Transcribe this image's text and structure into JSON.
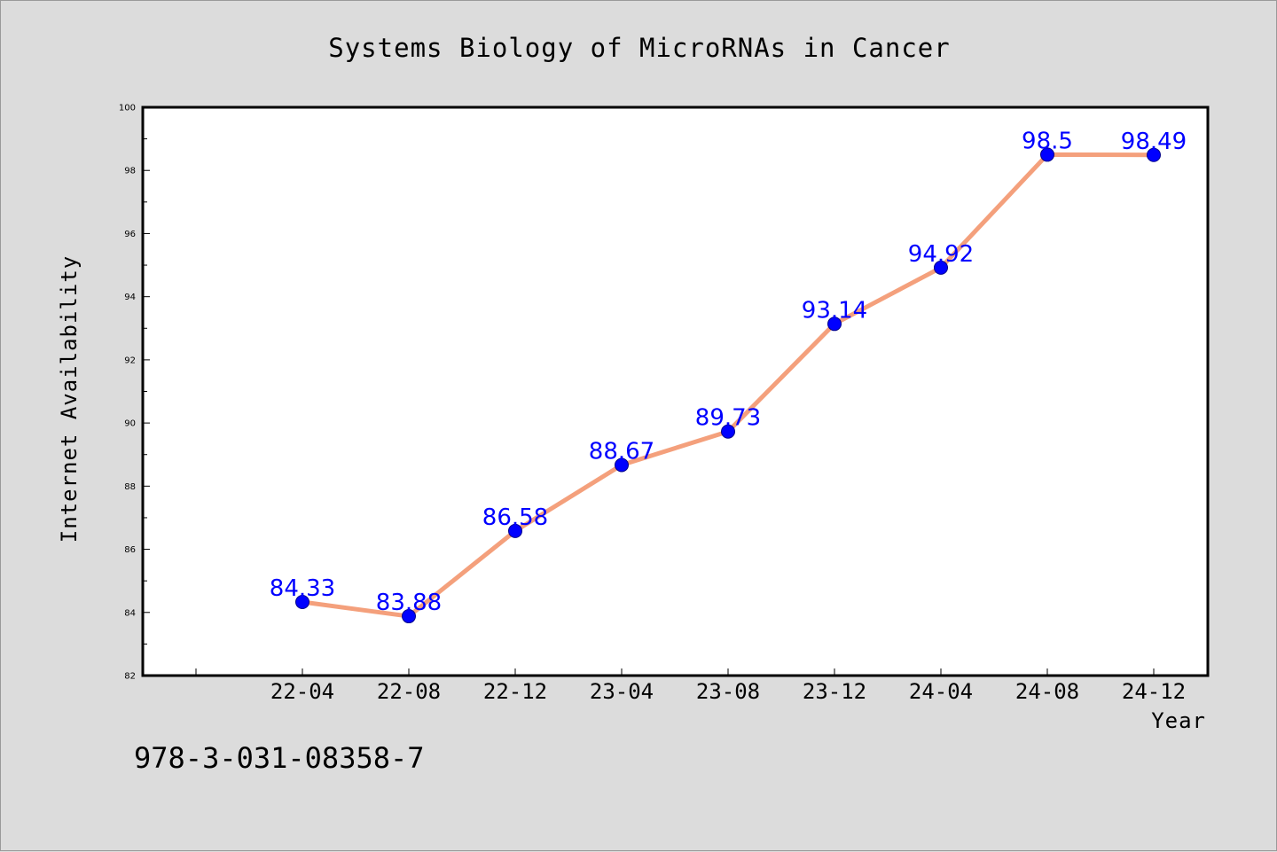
{
  "chart_data": {
    "type": "line",
    "title": "Systems Biology of MicroRNAs in Cancer",
    "xlabel": "Year",
    "ylabel": "Internet Availability",
    "categories": [
      "22-04",
      "22-08",
      "22-12",
      "23-04",
      "23-08",
      "23-12",
      "24-04",
      "24-08",
      "24-12"
    ],
    "values": [
      84.33,
      83.88,
      86.58,
      88.67,
      89.73,
      93.14,
      94.92,
      98.5,
      98.49
    ],
    "data_labels": [
      "84.33",
      "83.88",
      "86.58",
      "88.67",
      "89.73",
      "93.14",
      "94.92",
      "98.5",
      "98.49"
    ],
    "ylim": [
      82,
      100
    ],
    "yticks": [
      82,
      84,
      86,
      88,
      90,
      92,
      94,
      96,
      98,
      100
    ],
    "grid": false,
    "line_color": "#f4a07c",
    "marker_color": "#0000ff",
    "label_color": "#0000ff"
  },
  "footer": {
    "isbn": "978-3-031-08358-7"
  }
}
